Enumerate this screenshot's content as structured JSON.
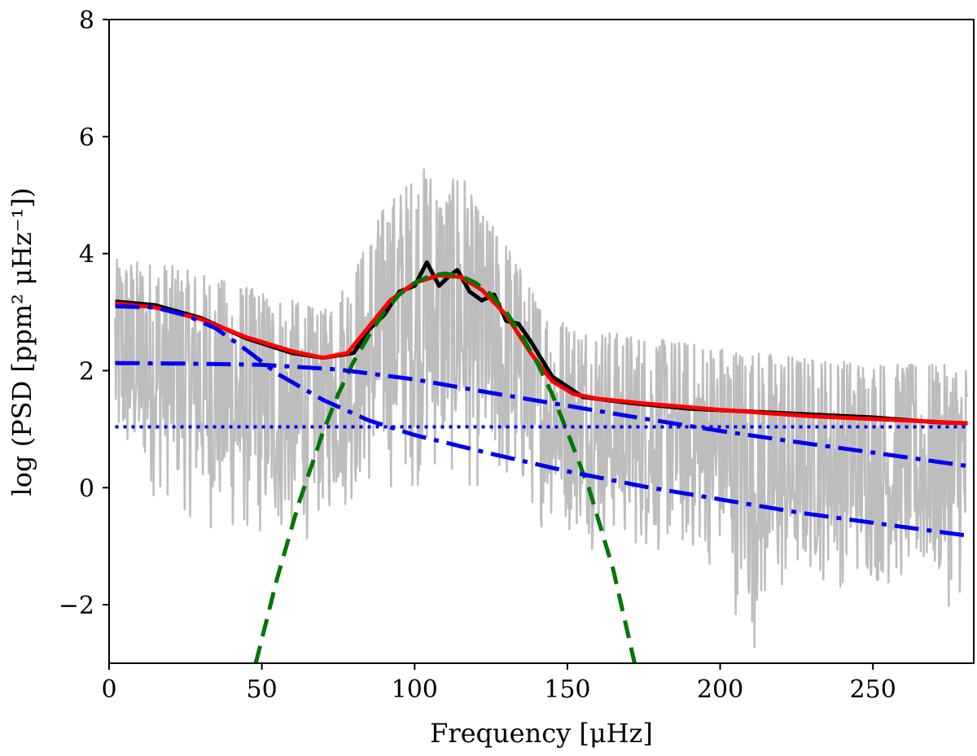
{
  "chart_data": {
    "type": "line",
    "xlabel": "Frequency [μHz]",
    "ylabel": "log (PSD [ppm² μHz⁻¹])",
    "xlim": [
      0,
      283
    ],
    "ylim": [
      -3,
      8
    ],
    "xticks": [
      0,
      50,
      100,
      150,
      200,
      250
    ],
    "yticks": [
      -2,
      0,
      2,
      4,
      6,
      8
    ],
    "ytick_labels": [
      "−2",
      "0",
      "2",
      "4",
      "6",
      "8"
    ],
    "grid": false,
    "legend": "none",
    "series": [
      {
        "role": "raw power spectrum",
        "style": "solid",
        "color": "#bdbdbd",
        "x_range": [
          2,
          281
        ],
        "upper_envelope": {
          "x": [
            2,
            20,
            40,
            60,
            70,
            80,
            90,
            100,
            104,
            110,
            115,
            120,
            130,
            140,
            150,
            170,
            200,
            230,
            260,
            281
          ],
          "y": [
            3.9,
            3.8,
            3.5,
            3.2,
            3.0,
            3.7,
            4.8,
            5.3,
            5.5,
            5.0,
            5.5,
            4.8,
            4.2,
            3.2,
            2.8,
            2.6,
            2.4,
            2.2,
            2.1,
            2.1
          ]
        },
        "lower_envelope": {
          "x": [
            2,
            20,
            40,
            60,
            70,
            90,
            110,
            130,
            150,
            170,
            200,
            210,
            230,
            260,
            281
          ],
          "y": [
            0.0,
            -0.5,
            -1.2,
            -1.3,
            -0.8,
            -0.3,
            -0.2,
            -0.5,
            -1.0,
            -1.3,
            -1.6,
            -3.0,
            -1.8,
            -2.0,
            -2.2
          ]
        }
      },
      {
        "role": "smoothed spectrum",
        "style": "solid",
        "color": "#000000",
        "x": [
          2,
          15,
          30,
          45,
          60,
          70,
          80,
          85,
          90,
          95,
          100,
          104,
          108,
          111,
          114,
          118,
          122,
          126,
          130,
          134,
          138,
          145,
          155,
          170,
          190,
          210,
          230,
          250,
          270,
          281
        ],
        "y": [
          3.18,
          3.12,
          2.9,
          2.55,
          2.3,
          2.22,
          2.3,
          2.7,
          2.95,
          3.35,
          3.45,
          3.85,
          3.45,
          3.6,
          3.72,
          3.35,
          3.2,
          3.3,
          2.85,
          2.8,
          2.5,
          1.9,
          1.55,
          1.45,
          1.35,
          1.3,
          1.25,
          1.2,
          1.12,
          1.1
        ]
      },
      {
        "role": "global fit",
        "style": "solid",
        "color": "#ff0000",
        "x": [
          2,
          15,
          30,
          45,
          60,
          70,
          78,
          85,
          92,
          100,
          108,
          115,
          122,
          130,
          138,
          145,
          152,
          160,
          175,
          200,
          230,
          260,
          281
        ],
        "y": [
          3.15,
          3.08,
          2.88,
          2.57,
          2.33,
          2.22,
          2.3,
          2.75,
          3.2,
          3.5,
          3.63,
          3.6,
          3.38,
          2.95,
          2.3,
          1.82,
          1.6,
          1.52,
          1.44,
          1.33,
          1.22,
          1.15,
          1.1
        ]
      },
      {
        "role": "Gaussian envelope",
        "style": "dashed",
        "color": "#007700",
        "x": [
          48,
          55,
          62,
          70,
          75,
          80,
          85,
          90,
          95,
          100,
          105,
          110,
          115,
          120,
          125,
          130,
          135,
          140,
          145,
          150,
          157,
          165,
          172
        ],
        "y": [
          -3.0,
          -1.55,
          -0.28,
          0.95,
          1.6,
          2.15,
          2.6,
          3.0,
          3.3,
          3.5,
          3.62,
          3.66,
          3.62,
          3.5,
          3.3,
          3.0,
          2.6,
          2.15,
          1.6,
          0.95,
          0.0,
          -1.4,
          -3.0
        ]
      },
      {
        "role": "granulation component 1",
        "style": "dashdot",
        "color": "#0000ee",
        "x": [
          2,
          15,
          25,
          35,
          45,
          55,
          70,
          85,
          100,
          125,
          150,
          175,
          200,
          225,
          250,
          281
        ],
        "y": [
          3.1,
          3.08,
          2.95,
          2.72,
          2.35,
          1.95,
          1.5,
          1.15,
          0.9,
          0.58,
          0.28,
          0.02,
          -0.2,
          -0.42,
          -0.6,
          -0.82
        ]
      },
      {
        "role": "granulation component 2",
        "style": "dashdot",
        "color": "#0000ee",
        "x": [
          2,
          25,
          50,
          75,
          100,
          125,
          150,
          175,
          200,
          225,
          250,
          281
        ],
        "y": [
          2.13,
          2.12,
          2.1,
          2.02,
          1.85,
          1.62,
          1.4,
          1.18,
          0.97,
          0.78,
          0.6,
          0.37
        ]
      },
      {
        "role": "white noise level",
        "style": "dotted",
        "color": "#0000ee",
        "x": [
          2,
          281
        ],
        "y": [
          1.04,
          1.04
        ]
      }
    ]
  }
}
